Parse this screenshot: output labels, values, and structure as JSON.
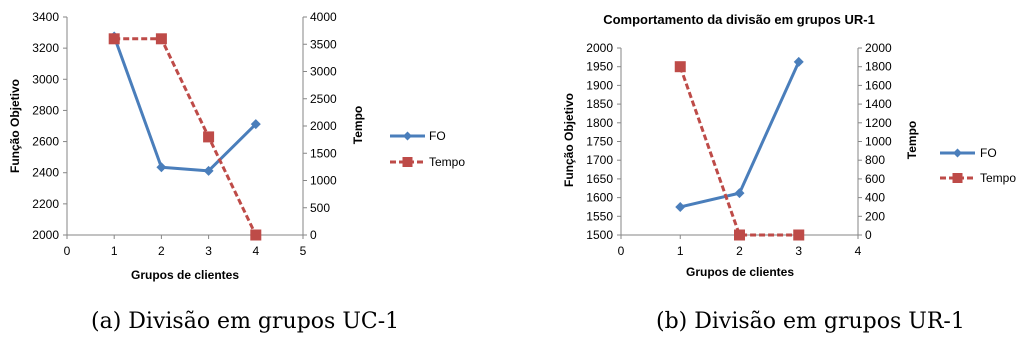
{
  "captions": {
    "left": "(a) Divisão em grupos UC-1",
    "right": "(b) Divisão em grupos UR-1"
  },
  "colors": {
    "fo": "#4a7ebb",
    "tempo": "#be4b48"
  },
  "chart_data": [
    {
      "type": "line",
      "title": "",
      "xlabel": "Grupos de clientes",
      "ylabel": "Função Objetivo",
      "y2label": "Tempo",
      "xlim": [
        0,
        5
      ],
      "xticks": [
        0,
        1,
        2,
        3,
        4,
        5
      ],
      "ylim": [
        2000,
        3400
      ],
      "yticks": [
        2000,
        2200,
        2400,
        2600,
        2800,
        3000,
        3200,
        3400
      ],
      "y2lim": [
        0,
        4000
      ],
      "y2ticks": [
        0,
        500,
        1000,
        1500,
        2000,
        2500,
        3000,
        3500,
        4000
      ],
      "series": [
        {
          "name": "FO",
          "axis": "left",
          "style": "solid",
          "marker": "diamond",
          "x": [
            1,
            2,
            3,
            4
          ],
          "values": [
            3275,
            2435,
            2412,
            2712
          ]
        },
        {
          "name": "Tempo",
          "axis": "right",
          "style": "dashed",
          "marker": "square",
          "x": [
            1,
            2,
            3,
            4
          ],
          "values": [
            3600,
            3600,
            1800,
            0
          ]
        }
      ],
      "legend": {
        "position": "right",
        "entries": [
          "FO",
          "Tempo"
        ]
      },
      "grid": false
    },
    {
      "type": "line",
      "title": "Comportamento da divisão em grupos UR-1",
      "xlabel": "Grupos de clientes",
      "ylabel": "Função Objetivo",
      "y2label": "Tempo",
      "xlim": [
        0,
        4
      ],
      "xticks": [
        0,
        1,
        2,
        3,
        4
      ],
      "ylim": [
        1500,
        2000
      ],
      "yticks": [
        1500,
        1550,
        1600,
        1650,
        1700,
        1750,
        1800,
        1850,
        1900,
        1950,
        2000
      ],
      "y2lim": [
        0,
        2000
      ],
      "y2ticks": [
        0,
        200,
        400,
        600,
        800,
        1000,
        1200,
        1400,
        1600,
        1800,
        2000
      ],
      "series": [
        {
          "name": "FO",
          "axis": "left",
          "style": "solid",
          "marker": "diamond",
          "x": [
            1,
            2,
            3
          ],
          "values": [
            1575,
            1612,
            1963
          ]
        },
        {
          "name": "Tempo",
          "axis": "right",
          "style": "dashed",
          "marker": "square",
          "x": [
            1,
            2,
            3
          ],
          "values": [
            1800,
            0,
            0
          ]
        }
      ],
      "legend": {
        "position": "right",
        "entries": [
          "FO",
          "Tempo"
        ]
      },
      "grid": false
    }
  ]
}
